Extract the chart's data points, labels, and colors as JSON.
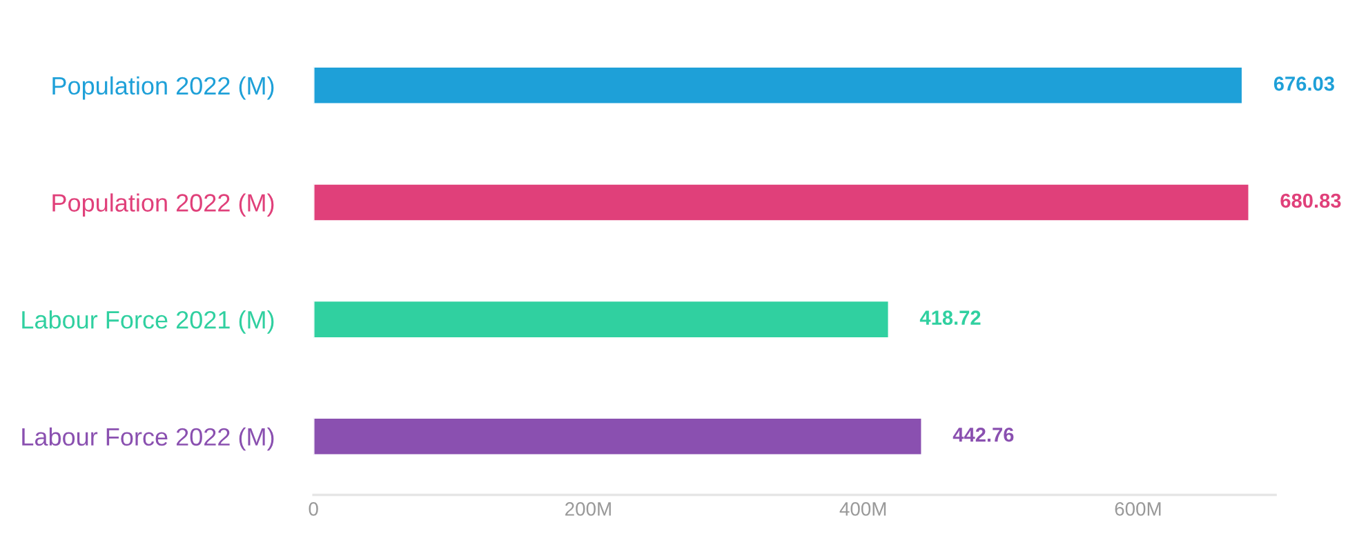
{
  "chart_data": {
    "type": "bar",
    "orientation": "horizontal",
    "categories": [
      "Population 2022 (M)",
      "Population 2022 (M)",
      "Labour Force 2021 (M)",
      "Labour Force 2022 (M)"
    ],
    "values": [
      676.03,
      680.83,
      418.72,
      442.76
    ],
    "colors": [
      "#1ea0d8",
      "#e0407a",
      "#30d0a0",
      "#8a50b0"
    ],
    "xlim": [
      0,
      700
    ],
    "xticks": [
      0,
      {
        "value": 200,
        "label": "200M"
      },
      {
        "value": 400,
        "label": "400M"
      },
      {
        "value": 600,
        "label": "600M"
      }
    ],
    "data_labels": true,
    "grid": false,
    "legend": false
  }
}
